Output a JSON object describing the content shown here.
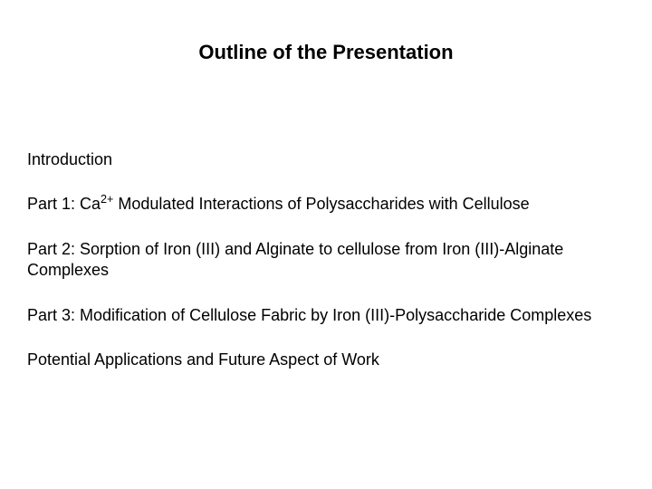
{
  "title": "Outline of the Presentation",
  "items": {
    "intro": "Introduction",
    "part1_prefix": "Part 1: Ca",
    "part1_sup": "2+",
    "part1_suffix": " Modulated Interactions of Polysaccharides with Cellulose",
    "part2": "Part 2: Sorption of Iron (III) and Alginate to cellulose from Iron (III)-Alginate Complexes",
    "part3": "Part 3: Modification of Cellulose Fabric by Iron (III)-Polysaccharide Complexes",
    "closing": "Potential Applications and Future Aspect of Work"
  },
  "styling": {
    "background_color": "#ffffff",
    "text_color": "#000000",
    "title_fontsize": 22,
    "body_fontsize": 18,
    "font_family": "Arial"
  }
}
